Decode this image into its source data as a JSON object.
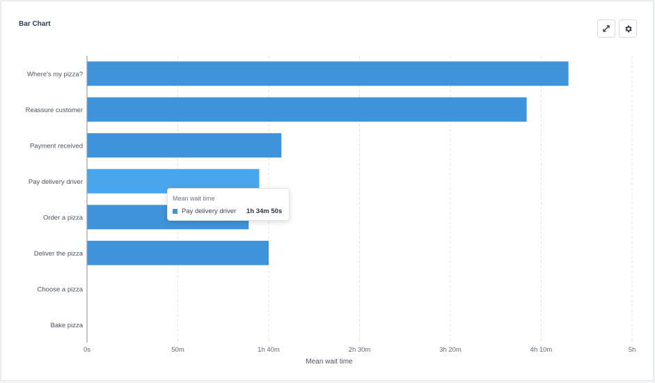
{
  "card": {
    "title": "Bar Chart"
  },
  "toolbar": {
    "expand_icon": "expand-icon",
    "settings_icon": "gear-icon"
  },
  "tooltip": {
    "title": "Mean wait time",
    "series_label": "Pay delivery driver",
    "value": "1h 34m 50s",
    "swatch_color": "#3f93d9"
  },
  "chart_data": {
    "type": "bar",
    "orientation": "horizontal",
    "title": "",
    "xlabel": "Mean wait time",
    "ylabel": "",
    "value_unit": "minutes",
    "xlim": [
      0,
      300
    ],
    "x_tick_values": [
      0,
      50,
      100,
      150,
      200,
      250,
      300
    ],
    "x_tick_labels": [
      "0s",
      "50m",
      "1h 40m",
      "2h 30m",
      "3h 20m",
      "4h 10m",
      "5h"
    ],
    "categories": [
      "Where's my pizza?",
      "Reassure customer",
      "Payment received",
      "Pay delivery driver",
      "Order a pizza",
      "Deliver the pizza",
      "Choose a pizza",
      "Bake  pizza"
    ],
    "values": [
      265,
      242,
      107,
      94.8,
      89,
      100,
      0,
      0
    ],
    "highlighted_category": "Pay delivery driver",
    "grid": "vertical dashed",
    "colors": {
      "bar": "#3f93d9",
      "bar_highlight": "#4aa6ec",
      "bar_shaded": "#3b8ed3"
    }
  }
}
